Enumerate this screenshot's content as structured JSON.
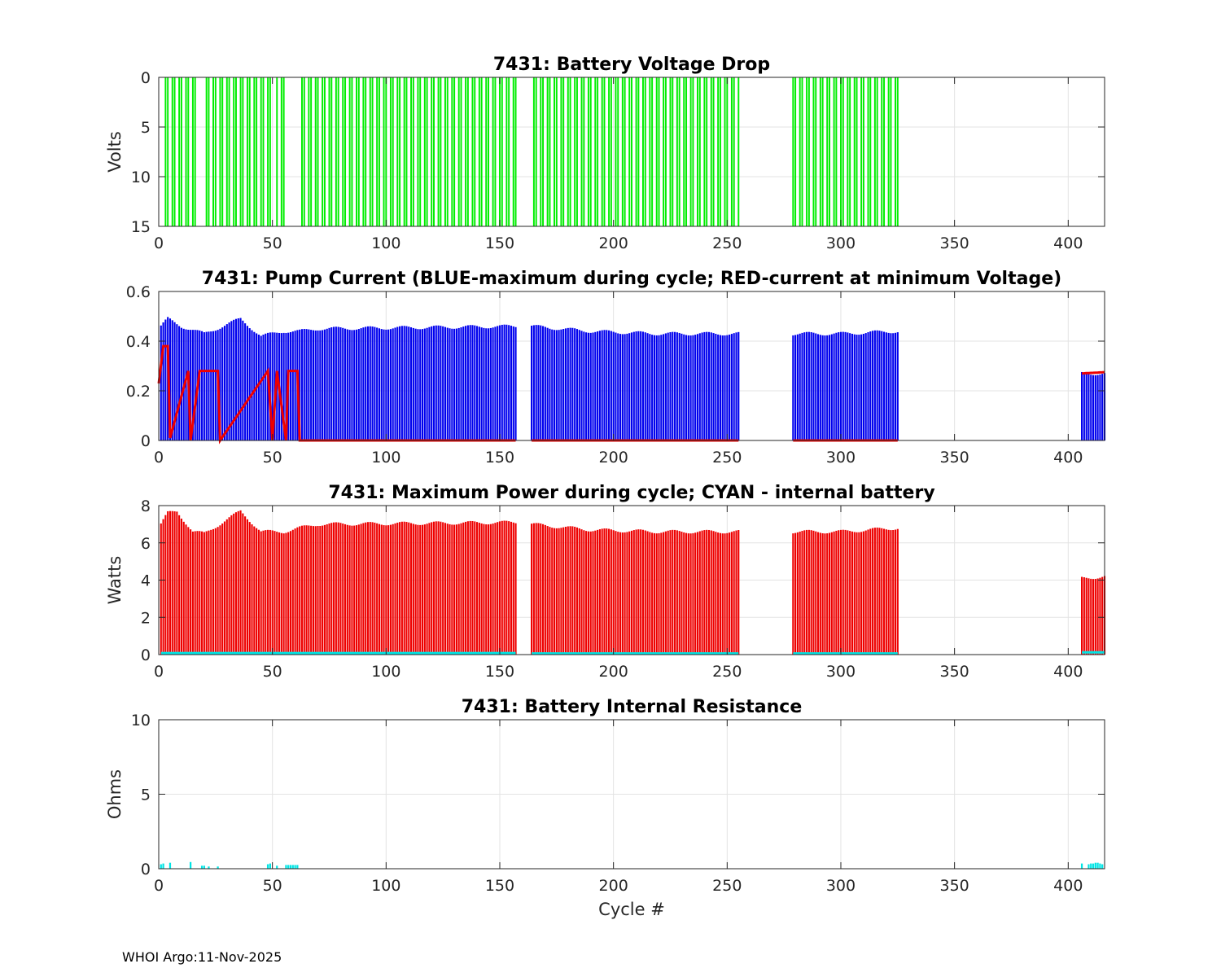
{
  "chart_data": [
    {
      "type": "bar",
      "title": "7431: Battery Voltage Drop",
      "xlabel": "",
      "ylabel": "Volts",
      "xlim": [
        0,
        416
      ],
      "ylim": [
        0,
        15
      ],
      "y_reversed": true,
      "grid": true,
      "xticks": [
        "0",
        "50",
        "100",
        "150",
        "200",
        "250",
        "300",
        "350",
        "400"
      ],
      "yticks": [
        "0",
        "5",
        "10",
        "15"
      ],
      "series": [
        {
          "name": "Voltage drop",
          "color": "#00ee00",
          "bars_full_scale_cycle_ranges": [
            [
              3,
              4
            ],
            [
              6,
              17
            ],
            [
              21,
              50
            ],
            [
              52,
              55
            ],
            [
              62,
              157
            ],
            [
              164,
              255
            ],
            [
              279,
              325
            ]
          ]
        }
      ]
    },
    {
      "type": "bar",
      "title": "7431: Pump Current (BLUE-maximum during cycle; RED-current at minimum Voltage)",
      "xlabel": "",
      "ylabel": "",
      "xlim": [
        0,
        416
      ],
      "ylim": [
        0,
        0.6
      ],
      "grid": true,
      "xticks": [
        "0",
        "50",
        "100",
        "150",
        "200",
        "250",
        "300",
        "350",
        "400"
      ],
      "yticks": [
        "0",
        "0.2",
        "0.4",
        "0.6"
      ],
      "series": [
        {
          "name": "Maximum during cycle",
          "color": "#0000ee",
          "segments": [
            {
              "cycles": [
                1,
                157
              ],
              "key_values": [
                [
                  1,
                  0.46
                ],
                [
                  4,
                  0.49
                ],
                [
                  10,
                  0.46
                ],
                [
                  20,
                  0.43
                ],
                [
                  36,
                  0.49
                ],
                [
                  45,
                  0.42
                ],
                [
                  55,
                  0.44
                ],
                [
                  62,
                  0.44
                ],
                [
                  70,
                  0.45
                ],
                [
                  157,
                  0.46
                ]
              ]
            },
            {
              "cycles": [
                164,
                255
              ],
              "key_values": [
                [
                  164,
                  0.46
                ],
                [
                  190,
                  0.44
                ],
                [
                  220,
                  0.43
                ],
                [
                  255,
                  0.43
                ]
              ]
            },
            {
              "cycles": [
                279,
                325
              ],
              "key_values": [
                [
                  279,
                  0.43
                ],
                [
                  300,
                  0.43
                ],
                [
                  325,
                  0.44
                ]
              ]
            },
            {
              "cycles": [
                406,
                416
              ],
              "key_values": [
                [
                  406,
                  0.27
                ],
                [
                  416,
                  0.27
                ]
              ]
            }
          ]
        },
        {
          "name": "Current at minimum Voltage",
          "color": "#ee0000",
          "segments": [
            {
              "cycles": [
                0,
                157
              ],
              "key_values": [
                [
                  0,
                  0.23
                ],
                [
                  2,
                  0.38
                ],
                [
                  4,
                  0.38
                ],
                [
                  5,
                  0.01
                ],
                [
                  13,
                  0.28
                ],
                [
                  14,
                  0.0
                ],
                [
                  18,
                  0.28
                ],
                [
                  23,
                  0.28
                ],
                [
                  26,
                  0.28
                ],
                [
                  27,
                  0.0
                ],
                [
                  48,
                  0.28
                ],
                [
                  50,
                  0.0
                ],
                [
                  52,
                  0.28
                ],
                [
                  56,
                  0.0
                ],
                [
                  57,
                  0.28
                ],
                [
                  61,
                  0.28
                ],
                [
                  62,
                  0.0
                ],
                [
                  157,
                  0.0
                ]
              ]
            },
            {
              "cycles": [
                164,
                255
              ],
              "key_values": [
                [
                  164,
                  0.0
                ],
                [
                  255,
                  0.0
                ]
              ]
            },
            {
              "cycles": [
                279,
                325
              ],
              "key_values": [
                [
                  279,
                  0.0
                ],
                [
                  325,
                  0.0
                ]
              ]
            },
            {
              "cycles": [
                406,
                416
              ],
              "key_values": [
                [
                  406,
                  0.27
                ],
                [
                  416,
                  0.275
                ]
              ]
            }
          ]
        }
      ]
    },
    {
      "type": "bar",
      "title": "7431: Maximum Power during cycle; CYAN - internal battery",
      "xlabel": "",
      "ylabel": "Watts",
      "xlim": [
        0,
        416
      ],
      "ylim": [
        0,
        8
      ],
      "grid": true,
      "xticks": [
        "0",
        "50",
        "100",
        "150",
        "200",
        "250",
        "300",
        "350",
        "400"
      ],
      "yticks": [
        "0",
        "2",
        "4",
        "6",
        "8"
      ],
      "series": [
        {
          "name": "Maximum Power",
          "color": "#ee0000",
          "segments": [
            {
              "cycles": [
                1,
                157
              ],
              "key_values": [
                [
                  1,
                  7.0
                ],
                [
                  4,
                  7.6
                ],
                [
                  8,
                  7.7
                ],
                [
                  15,
                  6.6
                ],
                [
                  20,
                  6.5
                ],
                [
                  36,
                  7.7
                ],
                [
                  45,
                  6.6
                ],
                [
                  55,
                  6.6
                ],
                [
                  62,
                  6.8
                ],
                [
                  70,
                  7.0
                ],
                [
                  157,
                  7.1
                ]
              ]
            },
            {
              "cycles": [
                164,
                255
              ],
              "key_values": [
                [
                  164,
                  7.0
                ],
                [
                  190,
                  6.7
                ],
                [
                  220,
                  6.6
                ],
                [
                  255,
                  6.6
                ]
              ]
            },
            {
              "cycles": [
                279,
                325
              ],
              "key_values": [
                [
                  279,
                  6.6
                ],
                [
                  300,
                  6.6
                ],
                [
                  325,
                  6.8
                ]
              ]
            },
            {
              "cycles": [
                406,
                416
              ],
              "key_values": [
                [
                  406,
                  4.1
                ],
                [
                  416,
                  4.2
                ]
              ]
            }
          ]
        },
        {
          "name": "internal battery",
          "color": "#00e5e5",
          "segments": [
            {
              "cycles": [
                1,
                157
              ],
              "key_values": [
                [
                  1,
                  0.08
                ],
                [
                  157,
                  0.08
                ]
              ]
            },
            {
              "cycles": [
                164,
                255
              ],
              "key_values": [
                [
                  164,
                  0.06
                ],
                [
                  255,
                  0.06
                ]
              ]
            },
            {
              "cycles": [
                279,
                325
              ],
              "key_values": [
                [
                  279,
                  0.06
                ],
                [
                  325,
                  0.06
                ]
              ]
            },
            {
              "cycles": [
                406,
                416
              ],
              "key_values": [
                [
                  406,
                  0.12
                ],
                [
                  416,
                  0.12
                ]
              ]
            }
          ]
        }
      ]
    },
    {
      "type": "bar",
      "title": "7431: Battery Internal Resistance",
      "xlabel": "Cycle #",
      "ylabel": "Ohms",
      "xlim": [
        0,
        416
      ],
      "ylim": [
        0,
        10
      ],
      "grid": true,
      "xticks": [
        "0",
        "50",
        "100",
        "150",
        "200",
        "250",
        "300",
        "350",
        "400"
      ],
      "yticks": [
        "0",
        "5",
        "10"
      ],
      "series": [
        {
          "name": "Internal Resistance",
          "color": "#00e5e5",
          "points": [
            [
              1,
              0.3
            ],
            [
              2,
              0.35
            ],
            [
              5,
              0.4
            ],
            [
              14,
              0.45
            ],
            [
              19,
              0.2
            ],
            [
              20,
              0.2
            ],
            [
              22,
              0.15
            ],
            [
              26,
              0.15
            ],
            [
              48,
              0.3
            ],
            [
              49,
              0.35
            ],
            [
              52,
              0.2
            ],
            [
              56,
              0.25
            ],
            [
              57,
              0.25
            ],
            [
              58,
              0.25
            ],
            [
              59,
              0.25
            ],
            [
              60,
              0.25
            ],
            [
              61,
              0.25
            ],
            [
              406,
              0.35
            ],
            [
              409,
              0.3
            ],
            [
              410,
              0.35
            ],
            [
              411,
              0.35
            ],
            [
              412,
              0.4
            ],
            [
              413,
              0.4
            ],
            [
              414,
              0.35
            ],
            [
              415,
              0.3
            ]
          ]
        }
      ]
    }
  ],
  "footer": "WHOI Argo:11-Nov-2025"
}
